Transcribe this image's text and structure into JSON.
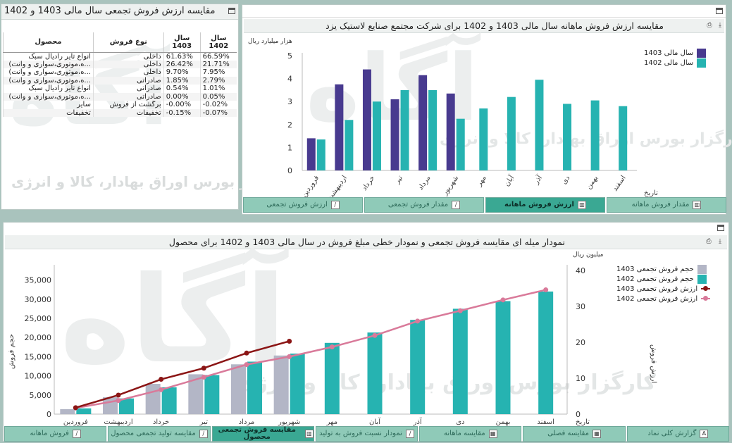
{
  "colors": {
    "teal": "#26b3b1",
    "purple": "#483a8f",
    "grey_bar": "#b3b6c6",
    "maroon": "#8b1515",
    "pink": "#d97a9a",
    "tab": "#8fcab8",
    "tab_active": "#3aa893"
  },
  "watermark": {
    "text": "کارگزار بورس اوراق بهادار، کالا و انرژی"
  },
  "table_panel": {
    "title": "مقایسه ارزش فروش تجمعی سال مالی 1403 و 1402",
    "headers": {
      "product": "محصول",
      "type": "نوع فروش",
      "y1403": "سال 1403",
      "y1402": "سال 1402"
    },
    "rows": [
      {
        "product": "انواع تایر رادیال سبک",
        "type": "داخلی",
        "y1403": "61.63%",
        "y1402": "66.59%"
      },
      {
        "product": "...ه،موتوری،سواری و وانت)",
        "type": "داخلی",
        "y1403": "26.42%",
        "y1402": "21.71%"
      },
      {
        "product": "...ه،موتوری،سواری و وانت)",
        "type": "داخلی",
        "y1403": "9.70%",
        "y1402": "7.95%"
      },
      {
        "product": "...ه،موتوری،سواری و وانت)",
        "type": "صادراتی",
        "y1403": "1.85%",
        "y1402": "2.79%"
      },
      {
        "product": "انواع تایر رادیال سبک",
        "type": "صادراتی",
        "y1403": "0.54%",
        "y1402": "1.01%"
      },
      {
        "product": "...ه،موتوری،سواری و وانت)",
        "type": "صادراتی",
        "y1403": "0.00%",
        "y1402": "0.05%"
      },
      {
        "product": "سایر",
        "type": "برگشت از فروش",
        "y1403": "-0.00%",
        "y1402": "-0.02%"
      },
      {
        "product": "تخفیفات",
        "type": "تخفیفات",
        "y1403": "-0.15%",
        "y1402": "-0.07%"
      }
    ]
  },
  "monthly_panel": {
    "title": "مقایسه ارزش فروش ماهانه سال مالی 1403 و 1402 برای شرکت مجتمع صنایع لاستیک یزد",
    "unit": "هزار میلیارد ریال",
    "xlabel": "تاریخ",
    "legend": [
      "سال مالی  1403",
      "سال مالی  1402"
    ],
    "tabs": [
      {
        "label": "مقدار فروش ماهانه",
        "icon": "bar-chart-icon",
        "active": false
      },
      {
        "label": "ارزش فروش ماهانه",
        "icon": "bar-chart-icon",
        "active": true
      },
      {
        "label": "مقدار فروش تجمعی",
        "icon": "line-chart-icon",
        "active": false
      },
      {
        "label": "ارزش فروش تجمعی",
        "icon": "line-chart-icon",
        "active": false
      }
    ]
  },
  "cumulative_panel": {
    "title": "نمودار میله ای مقایسه فروش تجمعی و نمودار خطی مبلغ فروش در سال مالی 1403 و 1402 برای محصول",
    "unit_right": "میلیون ریال",
    "ylabel_left": "حجم فروش",
    "ylabel_right": "ارزش فروش",
    "xlabel": "تاریخ",
    "legend": [
      "حجم فروش تجمعی  1403",
      "حجم فروش تجمعی  1402",
      "ارزش فروش تجمعی  1403",
      "ارزش فروش تجمعی  1402"
    ],
    "tabs": [
      {
        "label": "گزارش کلی نماد",
        "icon": "a-icon",
        "active": false
      },
      {
        "label": "مقایسه فصلی",
        "icon": "table-icon",
        "active": false
      },
      {
        "label": "مقایسه ماهانه",
        "icon": "table-icon",
        "active": false
      },
      {
        "label": "نمودار نسبت فروش به تولید",
        "icon": "line-chart-icon",
        "active": false
      },
      {
        "label": "مقایسه فروش تجمعی محصول",
        "icon": "bar-chart-icon",
        "active": true
      },
      {
        "label": "مقایسه تولید تجمعی محصول",
        "icon": "line-chart-icon",
        "active": false
      },
      {
        "label": "فروش ماهانه",
        "icon": "line-chart-icon",
        "active": false
      }
    ]
  },
  "chart_data": [
    {
      "type": "bar",
      "title": "مقایسه ارزش فروش ماهانه سال مالی 1403 و 1402 برای شرکت مجتمع صنایع لاستیک یزد",
      "xlabel": "تاریخ",
      "ylabel": "هزار میلیارد ریال",
      "ylim": [
        0,
        5
      ],
      "yticks": [
        0,
        1,
        2,
        3,
        4,
        5
      ],
      "categories": [
        "فروردین",
        "اردیبهشت",
        "خرداد",
        "تیر",
        "مرداد",
        "شهریور",
        "مهر",
        "آبان",
        "آذر",
        "دی",
        "بهمن",
        "اسفند"
      ],
      "series": [
        {
          "name": "سال مالی  1403",
          "values": [
            1.4,
            3.75,
            4.4,
            3.1,
            4.15,
            3.35,
            null,
            null,
            null,
            null,
            null,
            null
          ]
        },
        {
          "name": "سال مالی  1402",
          "values": [
            1.35,
            2.2,
            3.0,
            3.5,
            3.5,
            2.25,
            2.7,
            3.2,
            3.95,
            2.9,
            3.05,
            2.8
          ]
        }
      ],
      "legend_position": "top-right"
    },
    {
      "type": "bar",
      "title": "نمودار میله ای مقایسه فروش تجمعی و نمودار خطی مبلغ فروش در سال مالی 1403 و 1402 برای محصول",
      "xlabel": "تاریخ",
      "ylabel": "حجم فروش",
      "y2label": "ارزش فروش",
      "y2unit": "میلیون ریال",
      "ylim": [
        0,
        37500
      ],
      "yticks": [
        0,
        5000,
        10000,
        15000,
        20000,
        25000,
        30000,
        35000
      ],
      "ytick_labels": [
        "0",
        "5,000",
        "10,000",
        "15,000",
        "20,000",
        "25,000",
        "30,000",
        "35,000"
      ],
      "y2lim": [
        0,
        40
      ],
      "y2ticks": [
        0,
        10,
        20,
        30,
        40
      ],
      "categories": [
        "فروردین",
        "اردیبهشت",
        "خرداد",
        "تیر",
        "مرداد",
        "شهریور",
        "مهر",
        "آبان",
        "آذر",
        "دی",
        "بهمن",
        "اسفند"
      ],
      "series": [
        {
          "name": "حجم فروش تجمعی  1403",
          "kind": "bar",
          "axis": "left",
          "values": [
            1300,
            4400,
            7900,
            10400,
            13000,
            15300,
            null,
            null,
            null,
            null,
            null,
            null
          ]
        },
        {
          "name": "حجم فروش تجمعی  1402",
          "kind": "bar",
          "axis": "left",
          "values": [
            1500,
            4100,
            7000,
            10200,
            13700,
            15800,
            18600,
            21300,
            24600,
            27500,
            29500,
            32000
          ]
        },
        {
          "name": "ارزش فروش تجمعی  1403",
          "kind": "line",
          "axis": "right",
          "values": [
            1.8,
            5.3,
            9.7,
            12.8,
            17.0,
            20.3,
            null,
            null,
            null,
            null,
            null,
            null
          ]
        },
        {
          "name": "ارزش فروش تجمعی  1402",
          "kind": "line",
          "axis": "right",
          "values": [
            1.7,
            3.8,
            6.8,
            10.3,
            13.8,
            16.0,
            18.7,
            21.9,
            25.9,
            28.8,
            31.8,
            34.6
          ]
        }
      ],
      "legend_position": "top-right"
    }
  ]
}
